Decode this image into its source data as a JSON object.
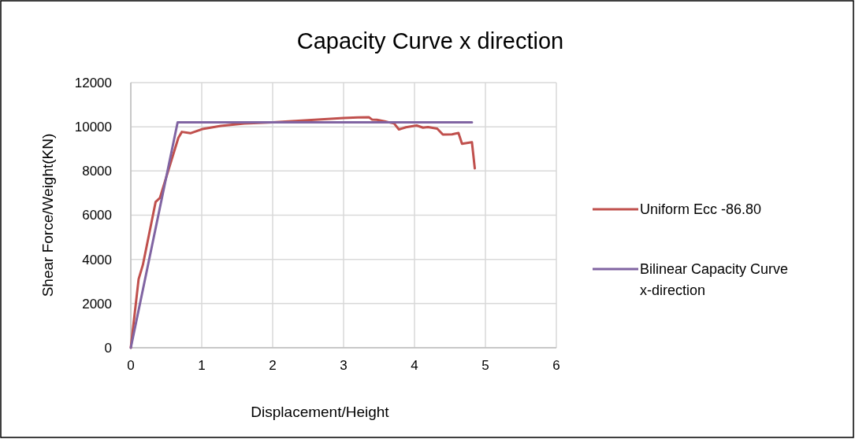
{
  "chart_data": {
    "type": "line",
    "title": "Capacity Curve x direction",
    "xlabel": "Displacement/Height",
    "ylabel": "Shear Force/Weight(KN)",
    "xlim": [
      0,
      6
    ],
    "xticks": [
      0,
      1,
      2,
      3,
      4,
      5,
      6
    ],
    "ylim": [
      0,
      12000
    ],
    "yticks": [
      0,
      2000,
      4000,
      6000,
      8000,
      10000,
      12000
    ],
    "grid": true,
    "legend": "right",
    "marker": "none",
    "line_style": "solid",
    "series": [
      {
        "name": "Uniform Ecc -86.80",
        "color": "#c0504d",
        "x": [
          0,
          0.11,
          0.17,
          0.35,
          0.41,
          0.67,
          0.72,
          0.84,
          1.01,
          1.27,
          1.6,
          2.0,
          2.5,
          3.0,
          3.2,
          3.36,
          3.4,
          3.47,
          3.58,
          3.67,
          3.71,
          3.78,
          3.88,
          4.03,
          4.12,
          4.19,
          4.32,
          4.4,
          4.53,
          4.62,
          4.67,
          4.81,
          4.85
        ],
        "values": [
          0,
          3100,
          3750,
          6600,
          6780,
          9500,
          9770,
          9710,
          9900,
          10040,
          10150,
          10200,
          10300,
          10400,
          10420,
          10430,
          10330,
          10320,
          10250,
          10180,
          10160,
          9880,
          9980,
          10060,
          9960,
          9990,
          9920,
          9650,
          9660,
          9720,
          9230,
          9300,
          8120
        ]
      },
      {
        "name": "Bilinear Capacity Curve x-direction",
        "color": "#8064a2",
        "x": [
          0,
          0.66,
          4.81
        ],
        "values": [
          0,
          10200,
          10200
        ]
      }
    ]
  }
}
